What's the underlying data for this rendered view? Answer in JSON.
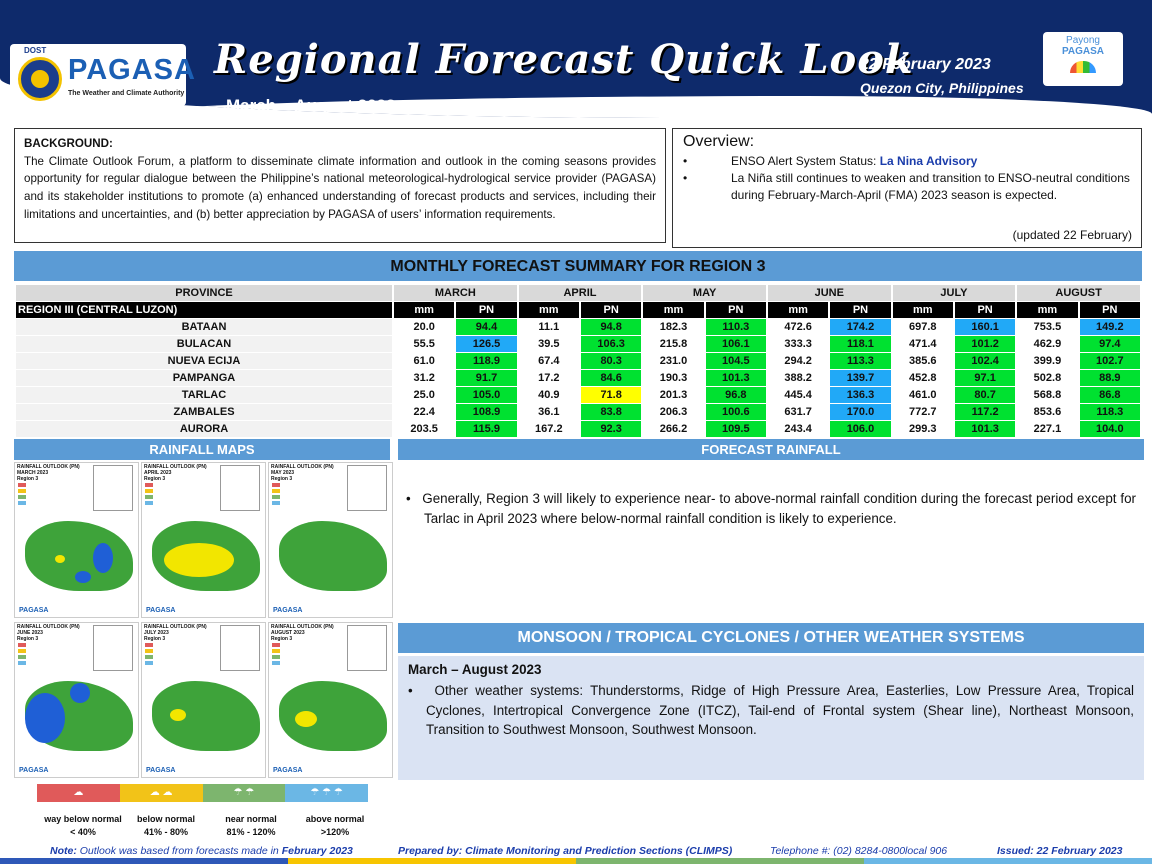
{
  "header": {
    "logo_dost": "DOST",
    "logo_name": "PAGASA",
    "logo_tagline": "The Weather and Climate Authority",
    "title": "Regional Forecast Quick Look",
    "subtitle": "March – August 2023",
    "date": "22 February 2023",
    "place": "Quezon City, Philippines",
    "payong_1": "Payong",
    "payong_2": "PAGASA"
  },
  "background": {
    "heading": "BACKGROUND:",
    "text": "The Climate Outlook Forum, a platform to disseminate climate information and outlook in the coming seasons provides opportunity for regular dialogue between the Philippine’s national meteorological-hydrological service provider (PAGASA) and its stakeholder institutions to promote (a) enhanced understanding of forecast products and services, including their limitations and uncertainties, and (b) better appreciation by PAGASA of users’ information requirements."
  },
  "overview": {
    "heading": "Overview:",
    "item1_prefix": "ENSO Alert System Status: ",
    "item1_status": "La Nina Advisory",
    "item2": "La Niña still continues to weaken and transition to ENSO-neutral conditions during February-March-April (FMA) 2023 season is expected.",
    "updated": "(updated 22 February)"
  },
  "summary": {
    "title": "MONTHLY FORECAST SUMMARY FOR REGION 3",
    "province_header": "PROVINCE",
    "region_label": "REGION III (CENTRAL LUZON)",
    "mm_label": "mm",
    "pn_label": "PN",
    "months": [
      "MARCH",
      "APRIL",
      "MAY",
      "JUNE",
      "JULY",
      "AUGUST"
    ],
    "rows": [
      {
        "province": "BATAAN",
        "values": [
          [
            "20.0",
            "94.4",
            "g"
          ],
          [
            "11.1",
            "94.8",
            "g"
          ],
          [
            "182.3",
            "110.3",
            "g"
          ],
          [
            "472.6",
            "174.2",
            "b"
          ],
          [
            "697.8",
            "160.1",
            "b"
          ],
          [
            "753.5",
            "149.2",
            "b"
          ]
        ]
      },
      {
        "province": "BULACAN",
        "values": [
          [
            "55.5",
            "126.5",
            "b"
          ],
          [
            "39.5",
            "106.3",
            "g"
          ],
          [
            "215.8",
            "106.1",
            "g"
          ],
          [
            "333.3",
            "118.1",
            "g"
          ],
          [
            "471.4",
            "101.2",
            "g"
          ],
          [
            "462.9",
            "97.4",
            "g"
          ]
        ]
      },
      {
        "province": "NUEVA ECIJA",
        "values": [
          [
            "61.0",
            "118.9",
            "g"
          ],
          [
            "67.4",
            "80.3",
            "g"
          ],
          [
            "231.0",
            "104.5",
            "g"
          ],
          [
            "294.2",
            "113.3",
            "g"
          ],
          [
            "385.6",
            "102.4",
            "g"
          ],
          [
            "399.9",
            "102.7",
            "g"
          ]
        ]
      },
      {
        "province": "PAMPANGA",
        "values": [
          [
            "31.2",
            "91.7",
            "g"
          ],
          [
            "17.2",
            "84.6",
            "g"
          ],
          [
            "190.3",
            "101.3",
            "g"
          ],
          [
            "388.2",
            "139.7",
            "b"
          ],
          [
            "452.8",
            "97.1",
            "g"
          ],
          [
            "502.8",
            "88.9",
            "g"
          ]
        ]
      },
      {
        "province": "TARLAC",
        "values": [
          [
            "25.0",
            "105.0",
            "g"
          ],
          [
            "40.9",
            "71.8",
            "y"
          ],
          [
            "201.3",
            "96.8",
            "g"
          ],
          [
            "445.4",
            "136.3",
            "b"
          ],
          [
            "461.0",
            "80.7",
            "g"
          ],
          [
            "568.8",
            "86.8",
            "g"
          ]
        ]
      },
      {
        "province": "ZAMBALES",
        "values": [
          [
            "22.4",
            "108.9",
            "g"
          ],
          [
            "36.1",
            "83.8",
            "g"
          ],
          [
            "206.3",
            "100.6",
            "g"
          ],
          [
            "631.7",
            "170.0",
            "b"
          ],
          [
            "772.7",
            "117.2",
            "g"
          ],
          [
            "853.6",
            "118.3",
            "g"
          ]
        ]
      },
      {
        "province": "AURORA",
        "values": [
          [
            "203.5",
            "115.9",
            "g"
          ],
          [
            "167.2",
            "92.3",
            "g"
          ],
          [
            "266.2",
            "109.5",
            "g"
          ],
          [
            "243.4",
            "106.0",
            "g"
          ],
          [
            "299.3",
            "101.3",
            "g"
          ],
          [
            "227.1",
            "104.0",
            "g"
          ]
        ]
      }
    ]
  },
  "rainfall_maps": {
    "title": "RAINFALL MAPS",
    "maps": [
      {
        "label": "RAINFALL OUTLOOK (PN)",
        "month": "MARCH 2023",
        "region": "Region 3"
      },
      {
        "label": "RAINFALL OUTLOOK (PN)",
        "month": "APRIL 2023",
        "region": "Region 3"
      },
      {
        "label": "RAINFALL OUTLOOK (PN)",
        "month": "MAY 2023",
        "region": "Region 3"
      },
      {
        "label": "RAINFALL OUTLOOK (PN)",
        "month": "JUNE 2023",
        "region": "Region 3"
      },
      {
        "label": "RAINFALL OUTLOOK (PN)",
        "month": "JULY 2023",
        "region": "Region 3"
      },
      {
        "label": "RAINFALL OUTLOOK (PN)",
        "month": "AUGUST 2023",
        "region": "Region 3"
      }
    ],
    "legend": [
      {
        "name": "way below normal",
        "range": "< 40%",
        "color": "#e05a5a"
      },
      {
        "name": "below normal",
        "range": "41% - 80%",
        "color": "#f2c318"
      },
      {
        "name": "near normal",
        "range": "81% - 120%",
        "color": "#7db56e"
      },
      {
        "name": "above normal",
        "range": ">120%",
        "color": "#6bb7e5"
      }
    ]
  },
  "forecast_rainfall": {
    "title": "FORECAST RAINFALL",
    "text": "Generally, Region 3 will likely to experience near- to above-normal rainfall condition during the forecast period except for Tarlac in April 2023 where below-normal rainfall condition is likely to experience."
  },
  "monsoon": {
    "title": "MONSOON / TROPICAL CYCLONES / OTHER WEATHER SYSTEMS",
    "period": "March – August 2023",
    "text": "Other weather systems: Thunderstorms,  Ridge of High Pressure Area,  Easterlies, Low Pressure Area, Tropical Cyclones, Intertropical Convergence Zone (ITCZ), Tail-end of Frontal system (Shear line), Northeast Monsoon, Transition to Southwest Monsoon, Southwest Monsoon."
  },
  "footer": {
    "note_label": "Note:",
    "note_text": " Outlook was based from forecasts made in ",
    "note_month": "February 2023",
    "prepared": "Prepared by: Climate Monitoring and Prediction Sections (CLIMPS)",
    "telephone": "Telephone #: (02) 8284-0800local 906",
    "issued": "Issued: 22 February 2023"
  },
  "colors": {
    "header_navy": "#0e2a6b",
    "section_blue": "#5b9bd5",
    "near_normal_green": "#00e130",
    "above_normal_blue": "#21a9f7",
    "below_normal_yellow": "#ffff00"
  }
}
